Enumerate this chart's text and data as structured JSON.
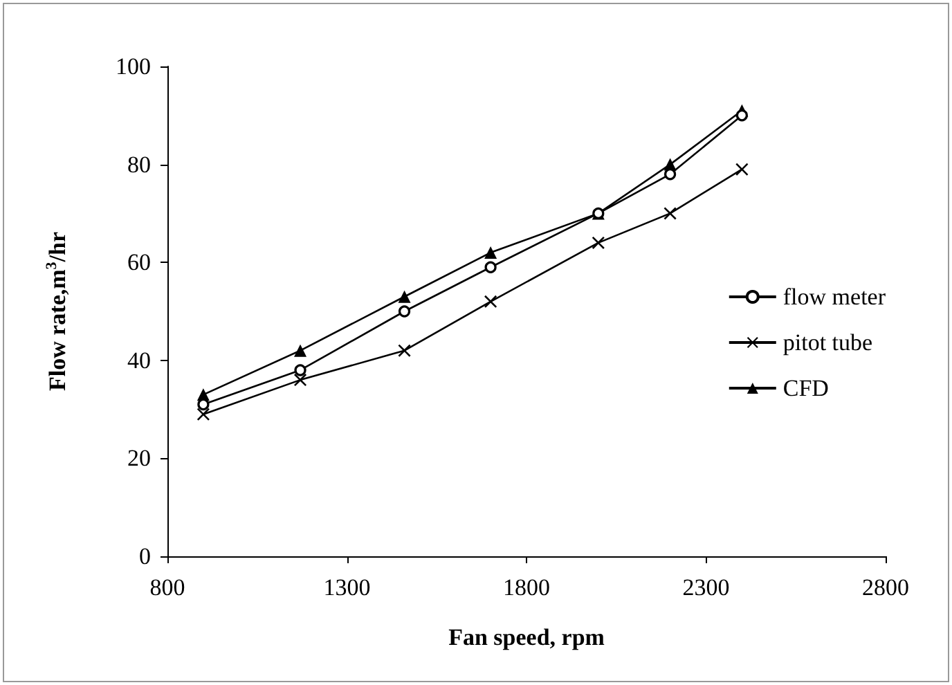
{
  "chart_data": {
    "type": "line",
    "xlabel": "Fan speed, rpm",
    "ylabel": "Flow rate,m$^{3}$/hr",
    "x": [
      900,
      1170,
      1460,
      1700,
      2000,
      2200,
      2400
    ],
    "series": [
      {
        "name": "flow meter",
        "color": "#000000",
        "marker": "circle",
        "values": [
          31,
          38,
          50,
          59,
          70,
          78,
          90
        ]
      },
      {
        "name": "pitot tube",
        "color": "#000000",
        "marker": "cross",
        "values": [
          29,
          36,
          42,
          52,
          64,
          70,
          79
        ]
      },
      {
        "name": "CFD",
        "color": "#000000",
        "marker": "triangle",
        "values": [
          33,
          42,
          53,
          62,
          70,
          80,
          91
        ]
      }
    ],
    "xlim": [
      800,
      2800
    ],
    "xticks": [
      800,
      1300,
      1800,
      2300,
      2800
    ],
    "ylim": [
      0,
      100
    ],
    "yticks": [
      0,
      20,
      40,
      60,
      80,
      100
    ],
    "grid": false,
    "legend": "right",
    "line_style": "solid"
  }
}
